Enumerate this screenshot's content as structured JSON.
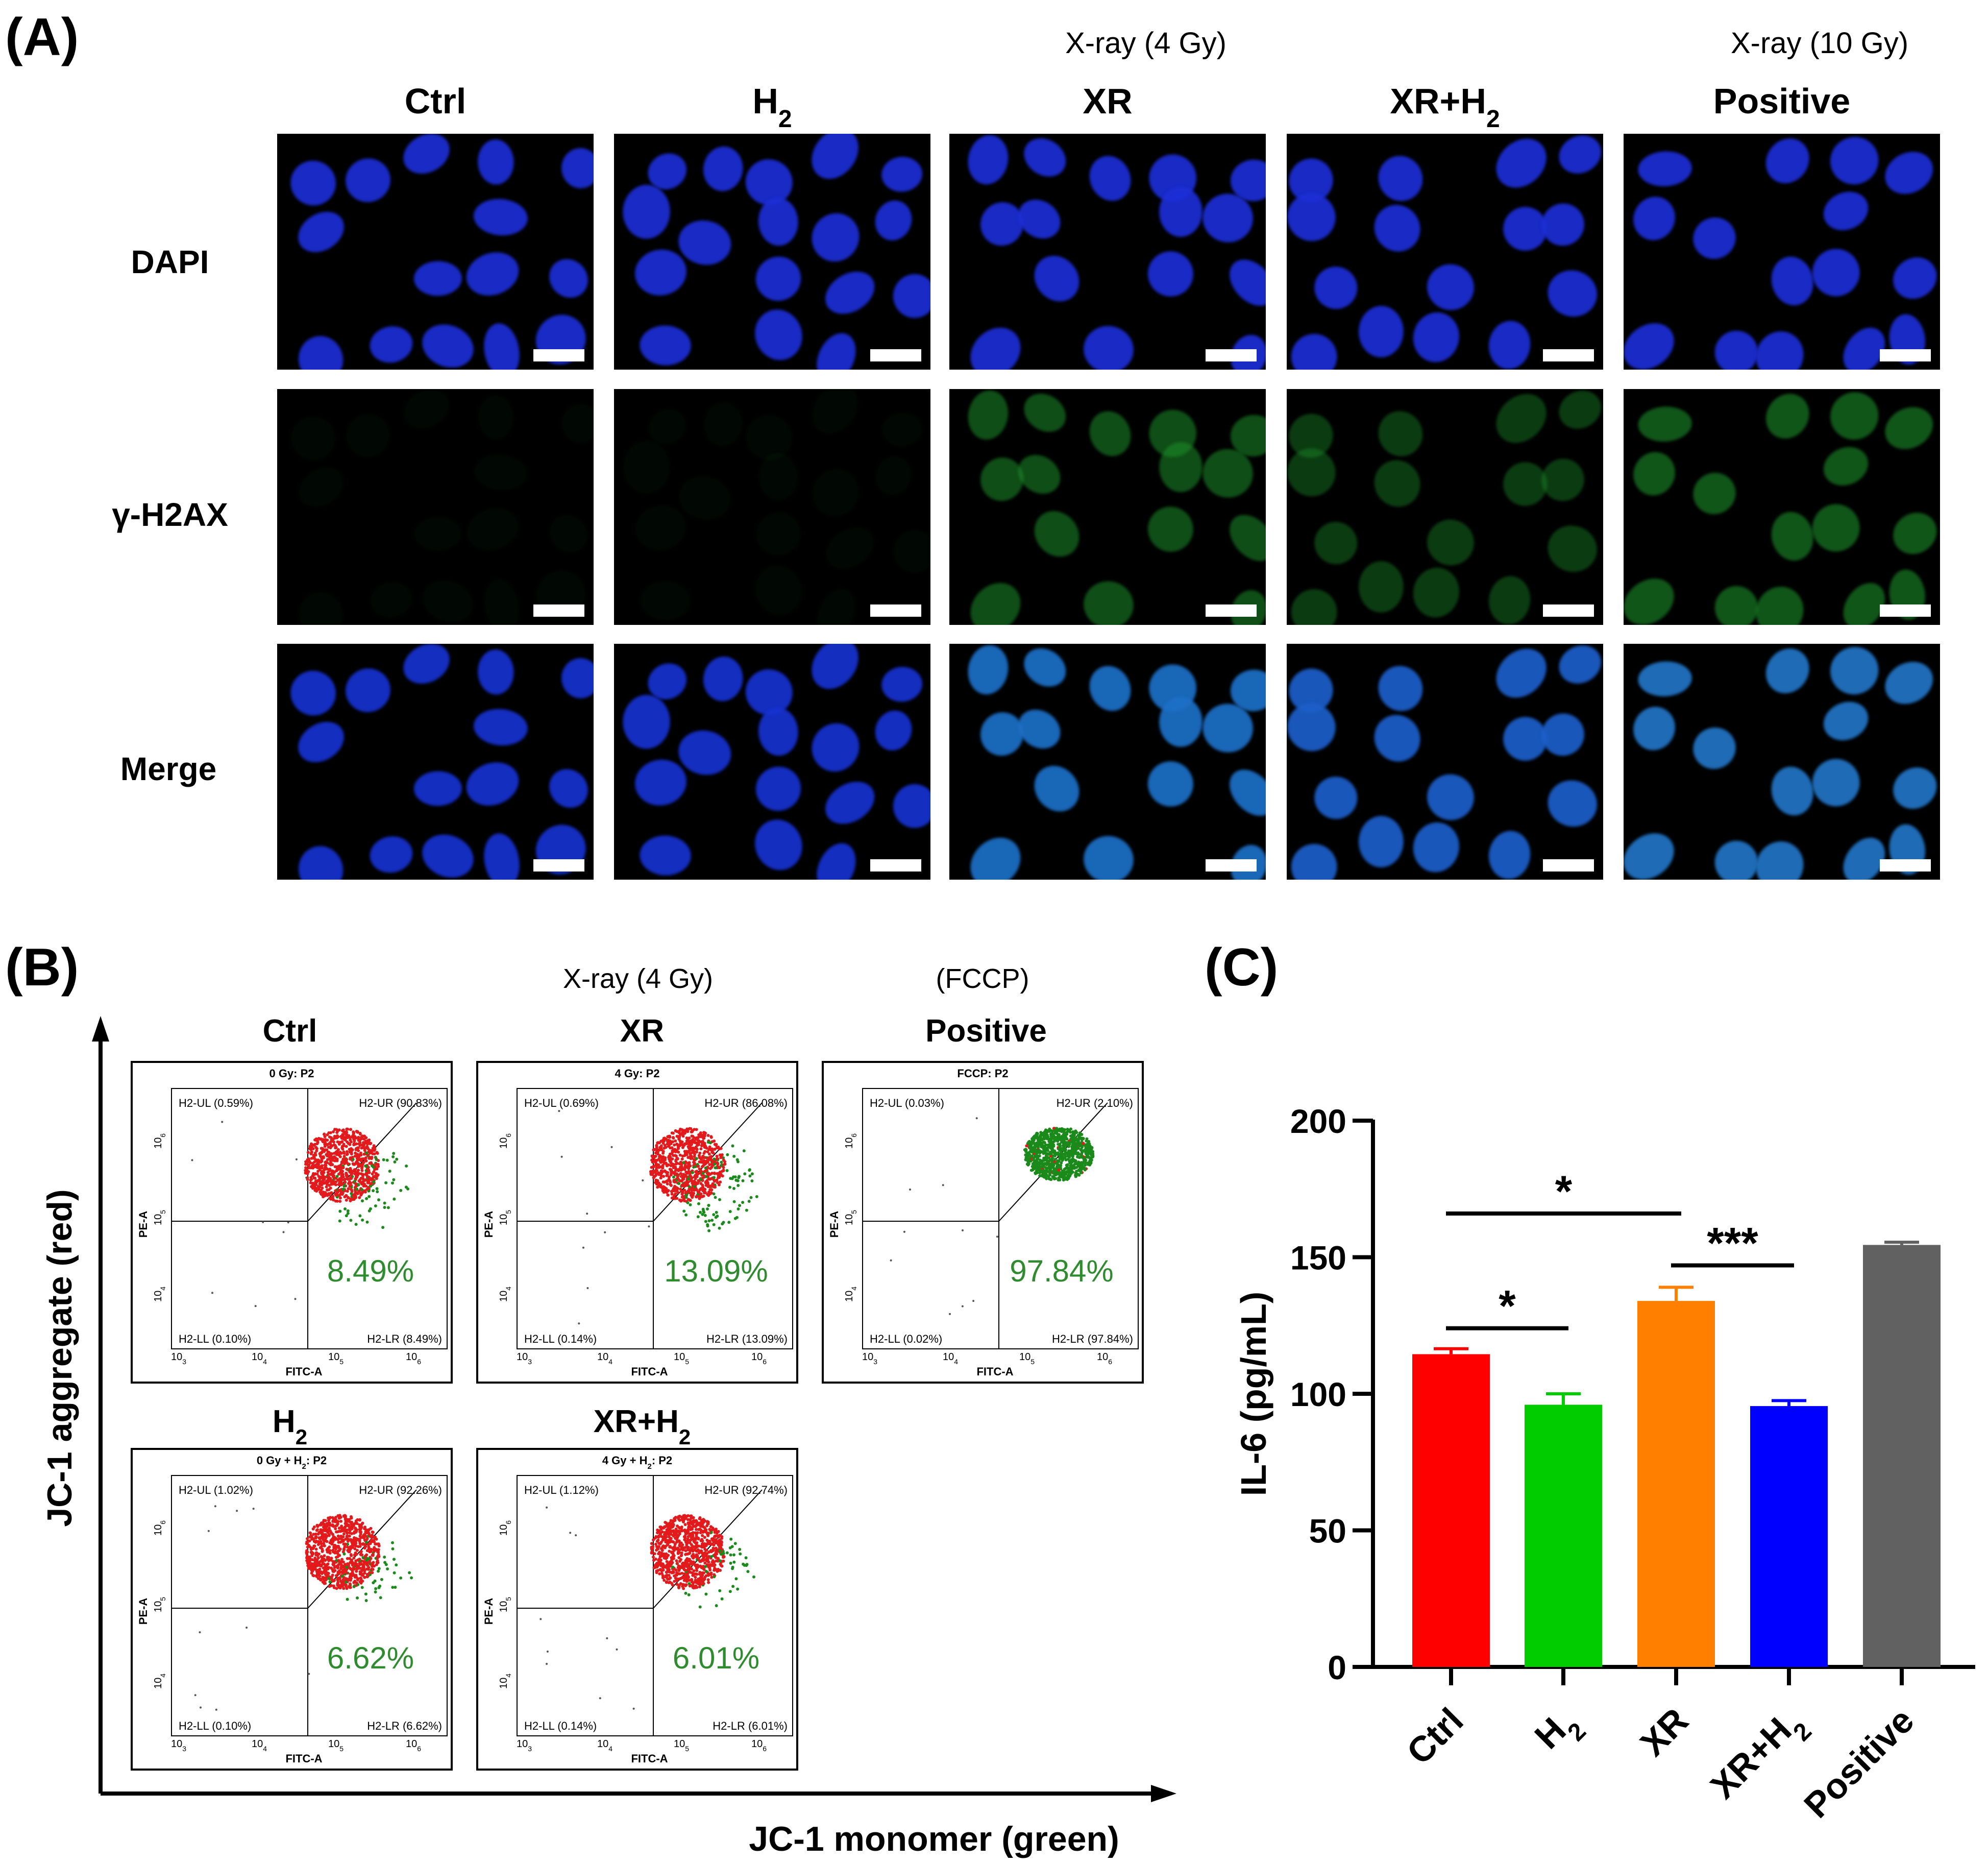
{
  "panel_a": {
    "label": "(A)",
    "group_headers": [
      "X-ray (4 Gy)",
      "X-ray (10 Gy)"
    ],
    "columns": [
      "Ctrl",
      "H",
      "XR",
      "XR+H",
      "Positive"
    ],
    "rows": [
      "DAPI",
      "γ-H2AX",
      "Merge"
    ],
    "subscript": "2",
    "green_intensity": [
      0.04,
      0.03,
      0.55,
      0.42,
      0.6
    ]
  },
  "panel_b": {
    "label": "(B)",
    "group_headers": [
      "X-ray (4 Gy)",
      "(FCCP)"
    ],
    "y_axis_label": "JC-1 aggregate (red)",
    "x_axis_label": "JC-1 monomer (green)",
    "plots": [
      {
        "title": "Ctrl",
        "title_sub": "",
        "header": "0 Gy: P2",
        "header_sub": "",
        "ul": "H2-UL (0.59%)",
        "ur": "H2-UR (90.83%)",
        "ll": "H2-LL (0.10%)",
        "lr": "H2-LR (8.49%)",
        "big_pct": "8.49%",
        "green_frac": 0.0849
      },
      {
        "title": "XR",
        "title_sub": "",
        "header": "4 Gy: P2",
        "header_sub": "",
        "ul": "H2-UL (0.69%)",
        "ur": "H2-UR (86.08%)",
        "ll": "H2-LL (0.14%)",
        "lr": "H2-LR (13.09%)",
        "big_pct": "13.09%",
        "green_frac": 0.1309
      },
      {
        "title": "Positive",
        "title_sub": "",
        "header": "FCCP: P2",
        "header_sub": "",
        "ul": "H2-UL (0.03%)",
        "ur": "H2-UR (2.10%)",
        "ll": "H2-LL (0.02%)",
        "lr": "H2-LR (97.84%)",
        "big_pct": "97.84%",
        "green_frac": 0.9784
      },
      {
        "title": "H",
        "title_sub": "2",
        "header": "0 Gy + H",
        "header_sub": "2",
        "ul": "H2-UL (1.02%)",
        "ur": "H2-UR (92.26%)",
        "ll": "H2-LL (0.10%)",
        "lr": "H2-LR (6.62%)",
        "big_pct": "6.62%",
        "green_frac": 0.0662
      },
      {
        "title": "XR+H",
        "title_sub": "2",
        "header": "4 Gy + H",
        "header_sub": "2",
        "ul": "H2-UL (1.12%)",
        "ur": "H2-UR (92.74%)",
        "ll": "H2-LL (0.14%)",
        "lr": "H2-LR (6.01%)",
        "big_pct": "6.01%",
        "green_frac": 0.0601
      }
    ],
    "header_suffix": ": P2",
    "axis_y": "PE-A",
    "axis_x": "FITC-A",
    "ticks_x": [
      "10",
      "10",
      "10",
      "10"
    ],
    "ticks_x_exp": [
      "3",
      "4",
      "5",
      "6"
    ],
    "ticks_y": [
      "10",
      "10",
      "10"
    ],
    "ticks_y_exp": [
      "4",
      "5",
      "6"
    ],
    "colors": {
      "aggregate": "#e31a1c",
      "monomer": "#1a8a1a",
      "pct_text": "#2e8b2e"
    }
  },
  "panel_c": {
    "label": "(C)",
    "chart_data": {
      "type": "bar",
      "categories": [
        "Ctrl",
        "H2",
        "XR",
        "XR+H2",
        "Positive"
      ],
      "category_labels": [
        {
          "main": "Ctrl",
          "sub": ""
        },
        {
          "main": "H",
          "sub": "2"
        },
        {
          "main": "XR",
          "sub": ""
        },
        {
          "main": "XR+H",
          "sub": "2"
        },
        {
          "main": "Positive",
          "sub": ""
        }
      ],
      "values": [
        114.5,
        96,
        134,
        95.5,
        154.5
      ],
      "errors": [
        2,
        4,
        5,
        2,
        1
      ],
      "colors": [
        "#ff0000",
        "#00cc00",
        "#ff7f00",
        "#0000ff",
        "#616161"
      ],
      "ylabel": "IL-6 (pg/mL)",
      "ylim": [
        0,
        200
      ],
      "yticks": [
        0,
        50,
        100,
        150,
        200
      ],
      "grid": false,
      "significance": [
        {
          "from": 0,
          "to": 1,
          "label": "*",
          "level": 124
        },
        {
          "from": 0,
          "to": 2,
          "label": "*",
          "level": 166
        },
        {
          "from": 2,
          "to": 3,
          "label": "***",
          "level": 147
        }
      ]
    }
  }
}
